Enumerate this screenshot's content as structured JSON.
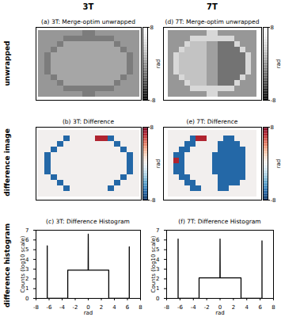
{
  "figure": {
    "column_titles": [
      "3T",
      "7T"
    ],
    "row_titles": [
      "unwrapped",
      "difference image",
      "difference histogram"
    ]
  },
  "chart_data": [
    {
      "type": "heatmap",
      "title": "(a) 3T: Merge-optim unwrapped",
      "color": "greys",
      "tick_labels": false,
      "colorbar_range": [
        -8,
        8
      ],
      "colorbar_ticks": [
        -8,
        8
      ],
      "colorbar_label": "rad",
      "cells": [
        [
          0,
          0,
          0,
          0,
          0,
          0,
          0,
          -1.5,
          -1.5,
          0,
          0,
          0,
          0,
          0,
          0,
          0
        ],
        [
          0,
          0,
          0,
          0,
          -1.5,
          -1.5,
          -1.5,
          -1.5,
          -1.5,
          -1.5,
          -1.5,
          -1.5,
          0,
          0,
          0,
          0
        ],
        [
          0,
          0,
          0,
          -1.5,
          0.8,
          0.8,
          0.8,
          0.8,
          0.8,
          0.8,
          0.8,
          0.8,
          -1.5,
          0,
          0,
          0
        ],
        [
          0,
          0,
          -1.5,
          0.8,
          0.8,
          0.8,
          0.8,
          0.8,
          0.8,
          0.8,
          0.8,
          0.8,
          0.8,
          -1.5,
          0,
          0
        ],
        [
          0,
          -1.5,
          0.8,
          0.8,
          0.8,
          0.8,
          0.8,
          0.8,
          0.8,
          0.8,
          0.8,
          0.8,
          0.8,
          0.8,
          -1.5,
          0
        ],
        [
          0,
          -1.5,
          0.8,
          0.8,
          0.8,
          0.8,
          0.8,
          0.8,
          0.8,
          0.8,
          0.8,
          0.8,
          0.8,
          0.8,
          -1.5,
          0
        ],
        [
          0,
          -1.5,
          0.8,
          0.8,
          0.8,
          0.8,
          0.8,
          0.8,
          0.8,
          0.8,
          0.8,
          0.8,
          0.8,
          0.8,
          -1.5,
          0
        ],
        [
          0,
          -1.5,
          0.8,
          0.8,
          0.8,
          0.8,
          0.8,
          0.8,
          0.8,
          0.8,
          0.8,
          0.8,
          0.8,
          0.8,
          -1.5,
          0
        ],
        [
          0,
          0,
          -1.5,
          0.8,
          0.8,
          0.8,
          0.8,
          0.8,
          0.8,
          0.8,
          0.8,
          0.8,
          0.8,
          -1.5,
          0,
          0
        ],
        [
          0,
          0,
          0,
          -1.5,
          0.8,
          0.8,
          0.8,
          0.8,
          0.8,
          0.8,
          0.8,
          0.8,
          -1.5,
          0,
          0,
          0
        ],
        [
          0,
          0,
          0,
          0,
          -1.5,
          -1.5,
          -1.5,
          -1.5,
          -1.5,
          -1.5,
          -1.5,
          -1.5,
          0,
          0,
          0,
          0
        ],
        [
          0,
          0,
          0,
          0,
          0,
          0,
          0,
          -1.5,
          -1.5,
          0,
          0,
          0,
          0,
          0,
          0,
          0
        ]
      ]
    },
    {
      "type": "heatmap",
      "title": "(b) 3T: Difference",
      "color": "rdbu",
      "tick_labels": false,
      "colorbar_range": [
        -8,
        8
      ],
      "colorbar_ticks": [
        -8,
        8
      ],
      "colorbar_label": "rad",
      "cells": [
        [
          0,
          0,
          0,
          0,
          0,
          0,
          0,
          0,
          0,
          0,
          0,
          0,
          0,
          0,
          0,
          0
        ],
        [
          0,
          0,
          0,
          0,
          -6.28,
          0,
          0,
          0,
          0,
          6.28,
          6.28,
          -6.28,
          0,
          0,
          0,
          0
        ],
        [
          0,
          0,
          0,
          -6.28,
          0,
          0,
          0,
          0,
          0,
          0,
          0,
          0,
          -6.28,
          0,
          0,
          0
        ],
        [
          0,
          0,
          -6.28,
          0,
          0,
          0,
          0,
          0,
          0,
          0,
          0,
          0,
          0,
          -6.28,
          0,
          0
        ],
        [
          0,
          -6.28,
          0,
          0,
          0,
          0,
          0,
          0,
          0,
          0,
          0,
          0,
          0,
          0,
          -6.28,
          0
        ],
        [
          0,
          -6.28,
          0,
          0,
          0,
          0,
          0,
          0,
          0,
          0,
          0,
          0,
          0,
          0,
          -6.28,
          0
        ],
        [
          0,
          -6.28,
          0,
          0,
          0,
          0,
          0,
          0,
          0,
          0,
          0,
          0,
          0,
          0,
          -6.28,
          0
        ],
        [
          0,
          -6.28,
          0,
          0,
          0,
          0,
          0,
          0,
          0,
          0,
          0,
          0,
          0,
          0,
          -6.28,
          0
        ],
        [
          0,
          0,
          -6.28,
          0,
          0,
          0,
          0,
          0,
          0,
          0,
          0,
          0,
          0,
          -6.28,
          0,
          0
        ],
        [
          0,
          0,
          0,
          -6.28,
          0,
          0,
          0,
          0,
          0,
          0,
          0,
          0,
          -6.28,
          0,
          0,
          0
        ],
        [
          0,
          0,
          0,
          0,
          -6.28,
          0,
          0,
          0,
          0,
          0,
          0,
          -6.28,
          0,
          0,
          0,
          0
        ],
        [
          0,
          0,
          0,
          0,
          0,
          0,
          0,
          0,
          0,
          0,
          0,
          0,
          0,
          0,
          0,
          0
        ]
      ]
    },
    {
      "type": "line",
      "title": "(c) 3T: Difference Histogram",
      "color": "#000000",
      "x": [
        -6.28,
        -6.28,
        -6.28,
        -3.14,
        -3.14,
        -0.02,
        0,
        0.02,
        3.14,
        3.14,
        6.28,
        6.28,
        6.28
      ],
      "values": [
        0,
        5.4,
        0,
        0,
        2.9,
        2.9,
        6.6,
        2.9,
        2.9,
        0,
        0,
        5.3,
        0
      ],
      "xlim": [
        -8,
        8
      ],
      "xticks": [
        -8,
        -6,
        -4,
        -2,
        0,
        2,
        4,
        6,
        8
      ],
      "ylim": [
        0,
        7
      ],
      "yticks": [
        0,
        1,
        2,
        3,
        4,
        5,
        6,
        7
      ],
      "xlabel": "rad",
      "ylabel": "Counts (log10 scale)"
    },
    {
      "type": "heatmap",
      "title": "(d) 7T: Merge-optim unwrapped",
      "color": "greys",
      "tick_labels": false,
      "colorbar_range": [
        -8,
        8
      ],
      "colorbar_ticks": [
        -8,
        8
      ],
      "colorbar_label": "rad",
      "cells": [
        [
          0,
          0,
          0,
          0,
          0,
          0,
          0,
          4,
          4,
          0,
          0,
          0,
          0,
          0,
          0,
          0
        ],
        [
          0,
          0,
          0,
          0,
          4,
          4,
          4,
          4,
          4,
          4,
          4,
          4,
          0,
          0,
          0,
          0
        ],
        [
          0,
          0,
          0,
          4,
          2.5,
          2.5,
          2.5,
          0.5,
          0.5,
          -2,
          -2,
          -2,
          4,
          0,
          0,
          0
        ],
        [
          0,
          0,
          4,
          2.5,
          2.5,
          2.5,
          2.5,
          0.5,
          0.5,
          -2,
          -2,
          -2,
          -2,
          4,
          0,
          0
        ],
        [
          0,
          4,
          2.5,
          2.5,
          2.5,
          2.5,
          2.5,
          0.5,
          0.5,
          -2,
          -2,
          -2,
          -2,
          -2,
          4,
          0
        ],
        [
          0,
          4,
          2.5,
          2.5,
          2.5,
          2.5,
          2.5,
          0.5,
          0.5,
          -2,
          -2,
          -2,
          -2,
          -2,
          4,
          0
        ],
        [
          0,
          4,
          2.5,
          2.5,
          2.5,
          2.5,
          2.5,
          0.5,
          0.5,
          -2,
          -2,
          -2,
          -2,
          -2,
          4,
          0
        ],
        [
          0,
          4,
          2.5,
          2.5,
          2.5,
          2.5,
          2.5,
          0.5,
          0.5,
          -2,
          -2,
          -2,
          -2,
          -2,
          4,
          0
        ],
        [
          0,
          0,
          4,
          2.5,
          2.5,
          2.5,
          2.5,
          0.5,
          0.5,
          -2,
          -2,
          -2,
          -2,
          4,
          0,
          0
        ],
        [
          0,
          0,
          0,
          4,
          2.5,
          2.5,
          2.5,
          0.5,
          0.5,
          -2,
          -2,
          -2,
          4,
          0,
          0,
          0
        ],
        [
          0,
          0,
          0,
          0,
          4,
          4,
          4,
          4,
          4,
          4,
          4,
          4,
          0,
          0,
          0,
          0
        ],
        [
          0,
          0,
          0,
          0,
          0,
          0,
          0,
          4,
          4,
          0,
          0,
          0,
          0,
          0,
          0,
          0
        ]
      ]
    },
    {
      "type": "heatmap",
      "title": "(e) 7T: Difference",
      "color": "rdbu",
      "tick_labels": false,
      "colorbar_range": [
        -8,
        8
      ],
      "colorbar_ticks": [
        -8,
        8
      ],
      "colorbar_label": "rad",
      "cells": [
        [
          0,
          0,
          0,
          0,
          0,
          0,
          0,
          0,
          0,
          0,
          0,
          0,
          0,
          0,
          0,
          0
        ],
        [
          0,
          0,
          0,
          0,
          -6.28,
          6.28,
          6.28,
          0,
          0,
          0,
          -6.28,
          -6.28,
          0,
          0,
          0,
          0
        ],
        [
          0,
          0,
          0,
          -6.28,
          -6.28,
          0,
          0,
          0,
          0,
          -6.28,
          -6.28,
          -6.28,
          -6.28,
          0,
          0,
          0
        ],
        [
          0,
          0,
          -6.28,
          -6.28,
          0,
          0,
          0,
          0,
          0,
          -6.28,
          -6.28,
          -6.28,
          -6.28,
          -6.28,
          0,
          0
        ],
        [
          0,
          -6.28,
          -6.28,
          0,
          0,
          0,
          0,
          0,
          -6.28,
          -6.28,
          -6.28,
          -6.28,
          -6.28,
          -6.28,
          0,
          0
        ],
        [
          0,
          6.28,
          -6.28,
          0,
          0,
          0,
          0,
          0,
          -6.28,
          -6.28,
          -6.28,
          -6.28,
          -6.28,
          -6.28,
          0,
          0
        ],
        [
          0,
          -6.28,
          -6.28,
          0,
          0,
          0,
          0,
          0,
          -6.28,
          -6.28,
          -6.28,
          -6.28,
          -6.28,
          -6.28,
          0,
          0
        ],
        [
          0,
          -6.28,
          -6.28,
          0,
          0,
          0,
          0,
          0,
          -6.28,
          -6.28,
          -6.28,
          -6.28,
          -6.28,
          -6.28,
          0,
          0
        ],
        [
          0,
          0,
          -6.28,
          -6.28,
          0,
          0,
          0,
          0,
          0,
          -6.28,
          -6.28,
          -6.28,
          -6.28,
          -6.28,
          0,
          0
        ],
        [
          0,
          0,
          0,
          -6.28,
          -6.28,
          0,
          0,
          0,
          0,
          -6.28,
          -6.28,
          -6.28,
          -6.28,
          0,
          0,
          0
        ],
        [
          0,
          0,
          0,
          0,
          -6.28,
          -6.28,
          0,
          0,
          0,
          -6.28,
          -6.28,
          0,
          0,
          0,
          0,
          0
        ],
        [
          0,
          0,
          0,
          0,
          0,
          0,
          0,
          0,
          0,
          0,
          0,
          0,
          0,
          0,
          0,
          0
        ]
      ]
    },
    {
      "type": "line",
      "title": "(f) 7T: Difference Histogram",
      "color": "#000000",
      "x": [
        -6.28,
        -6.28,
        -6.28,
        -3.14,
        -3.14,
        -0.02,
        0,
        0.02,
        3.14,
        3.14,
        6.28,
        6.28,
        6.28
      ],
      "values": [
        0,
        6.1,
        0,
        0,
        2.1,
        2.1,
        6.1,
        2.1,
        2.1,
        0,
        0,
        5.9,
        0
      ],
      "xlim": [
        -8,
        8
      ],
      "xticks": [
        -8,
        -6,
        -4,
        -2,
        0,
        2,
        4,
        6,
        8
      ],
      "ylim": [
        0,
        7
      ],
      "yticks": [
        0,
        1,
        2,
        3,
        4,
        5,
        6,
        7
      ],
      "xlabel": "rad",
      "ylabel": "Counts (log10 scale)"
    }
  ]
}
